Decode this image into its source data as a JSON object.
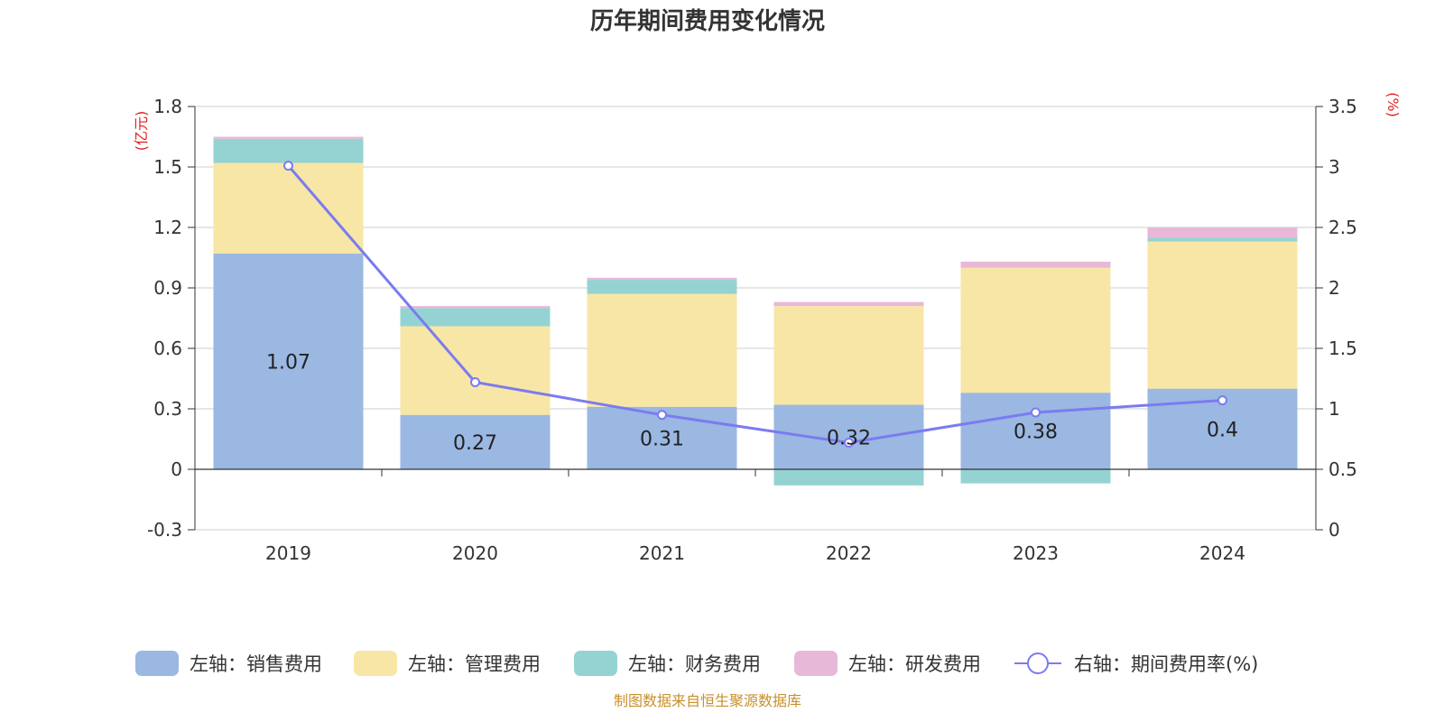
{
  "chart_data": {
    "type": "bar",
    "title": "历年期间费用变化情况",
    "categories": [
      "2019",
      "2020",
      "2021",
      "2022",
      "2023",
      "2024"
    ],
    "left_axis": {
      "unit": "(亿元)",
      "ylim": [
        -0.3,
        1.8
      ],
      "ticks": [
        "1.8",
        "1.5",
        "1.2",
        "0.9",
        "0.6",
        "0.3",
        "0",
        "-0.3"
      ],
      "tick_values": [
        1.8,
        1.5,
        1.2,
        0.9,
        0.6,
        0.3,
        0,
        -0.3
      ]
    },
    "right_axis": {
      "unit": "(%)",
      "ylim": [
        0,
        3.5
      ],
      "ticks": [
        "3.5",
        "3",
        "2.5",
        "2",
        "1.5",
        "1",
        "0.5",
        "0"
      ],
      "tick_values": [
        3.5,
        3,
        2.5,
        2,
        1.5,
        1,
        0.5,
        0
      ]
    },
    "series": [
      {
        "name": "左轴：销售费用",
        "type": "bar",
        "axis": "left",
        "color": "#9ab8e2",
        "values": [
          1.07,
          0.27,
          0.31,
          0.32,
          0.38,
          0.4
        ]
      },
      {
        "name": "左轴：管理费用",
        "type": "bar",
        "axis": "left",
        "color": "#f8e6a6",
        "values": [
          0.45,
          0.44,
          0.56,
          0.49,
          0.62,
          0.73
        ]
      },
      {
        "name": "左轴：财务费用",
        "type": "bar",
        "axis": "left",
        "color": "#95d3d3",
        "values": [
          0.12,
          0.09,
          0.07,
          -0.08,
          -0.07,
          0.02
        ]
      },
      {
        "name": "左轴：研发费用",
        "type": "bar",
        "axis": "left",
        "color": "#e8b8d8",
        "values": [
          0.01,
          0.01,
          0.01,
          0.02,
          0.03,
          0.05
        ]
      },
      {
        "name": "右轴：期间费用率(%)",
        "type": "line",
        "axis": "right",
        "color": "#7b7bf0",
        "values": [
          3.01,
          1.22,
          0.95,
          0.72,
          0.97,
          1.07
        ]
      }
    ],
    "data_labels": [
      "1.07",
      "0.27",
      "0.31",
      "0.32",
      "0.38",
      "0.4"
    ],
    "grid": true,
    "legend_position": "bottom"
  },
  "source": "制图数据来自恒生聚源数据库"
}
